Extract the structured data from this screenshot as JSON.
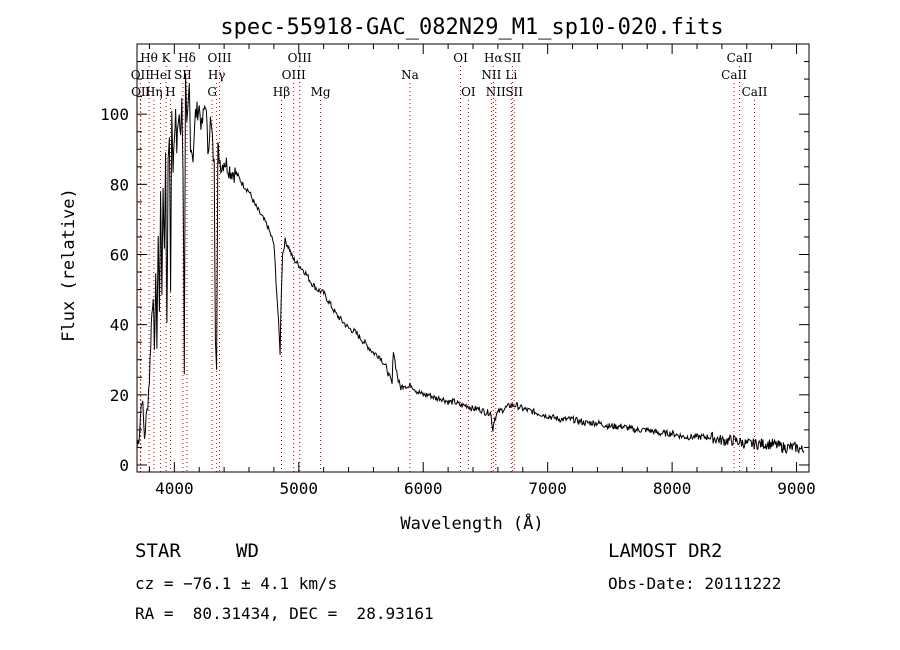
{
  "chart_data": {
    "type": "line",
    "title": "spec-55918-GAC_082N29_M1_sp10-020.fits",
    "xlabel": "Wavelength (Å)",
    "ylabel": "Flux (relative)",
    "xlim": [
      3700,
      9100
    ],
    "ylim": [
      -2,
      120
    ],
    "x_ticks": [
      4000,
      5000,
      6000,
      7000,
      8000,
      9000
    ],
    "y_ticks": [
      0,
      20,
      40,
      60,
      80,
      100
    ],
    "grid": false,
    "series": [
      {
        "x": [
          3700,
          3720,
          3740,
          3760,
          3780,
          3800,
          3815,
          3830,
          3840,
          3850,
          3860,
          3870,
          3880,
          3890,
          3900,
          3910,
          3920,
          3930,
          3940,
          3950,
          3960,
          3970,
          3980,
          3990,
          4000,
          4010,
          4020,
          4030,
          4040,
          4050,
          4060,
          4070,
          4080,
          4090,
          4100,
          4110,
          4120,
          4130,
          4150,
          4170,
          4200,
          4220,
          4250,
          4270,
          4290,
          4300,
          4320,
          4330,
          4340,
          4350,
          4360,
          4380,
          4400,
          4450,
          4500,
          4550,
          4600,
          4650,
          4700,
          4750,
          4800,
          4830,
          4850,
          4860,
          4870,
          4890,
          4920,
          4950,
          5000,
          5050,
          5100,
          5150,
          5200,
          5250,
          5300,
          5350,
          5400,
          5450,
          5500,
          5550,
          5600,
          5650,
          5700,
          5730,
          5750,
          5760,
          5780,
          5800,
          5820,
          5850,
          5880,
          5900,
          5950,
          6000,
          6050,
          6100,
          6150,
          6200,
          6250,
          6300,
          6350,
          6400,
          6450,
          6500,
          6540,
          6560,
          6570,
          6600,
          6650,
          6700,
          6750,
          6800,
          6900,
          7000,
          7100,
          7200,
          7300,
          7400,
          7500,
          7600,
          7700,
          7800,
          7900,
          8000,
          8100,
          8200,
          8300,
          8400,
          8500,
          8600,
          8700,
          8800,
          8900,
          9000,
          9060
        ],
        "y": [
          5,
          10,
          20,
          8,
          15,
          25,
          40,
          50,
          30,
          55,
          35,
          65,
          45,
          75,
          50,
          80,
          60,
          90,
          38,
          85,
          95,
          50,
          100,
          85,
          95,
          102,
          88,
          98,
          100,
          92,
          105,
          85,
          28,
          110,
          95,
          100,
          108,
          92,
          88,
          100,
          102,
          96,
          104,
          90,
          98,
          95,
          85,
          38,
          30,
          90,
          88,
          85,
          87,
          84,
          83,
          80,
          78,
          74,
          71,
          68,
          63,
          45,
          32,
          50,
          60,
          64,
          62,
          59,
          57,
          55,
          52,
          50,
          49,
          46,
          43,
          41,
          39,
          38,
          36,
          34,
          32,
          31,
          28,
          25,
          23,
          33,
          28,
          24,
          22,
          23,
          22,
          23,
          21,
          20,
          20,
          19,
          19,
          18,
          18,
          17,
          17,
          16,
          16,
          15,
          15,
          10,
          13,
          15,
          16,
          17,
          17,
          16,
          15,
          14,
          13,
          13,
          12,
          12,
          11,
          11,
          10,
          10,
          9,
          9,
          8,
          8,
          8,
          7,
          7,
          6,
          6,
          6,
          5,
          5,
          4
        ]
      }
    ],
    "line_marks": [
      {
        "label": "Hθ",
        "x": 3797,
        "row": 1
      },
      {
        "label": "OII",
        "x": 3727,
        "row": 2
      },
      {
        "label": "OII",
        "x": 3730,
        "row": 3
      },
      {
        "label": "K",
        "x": 3934,
        "row": 1
      },
      {
        "label": "HeI",
        "x": 3889,
        "row": 2
      },
      {
        "label": "Hη",
        "x": 3835,
        "row": 3
      },
      {
        "label": "SII",
        "x": 4069,
        "row": 2
      },
      {
        "label": "H",
        "x": 3969,
        "row": 3
      },
      {
        "label": "Hδ",
        "x": 4102,
        "row": 1
      },
      {
        "label": "OIII",
        "x": 4363,
        "row": 1
      },
      {
        "label": "Hγ",
        "x": 4340,
        "row": 2
      },
      {
        "label": "G",
        "x": 4304,
        "row": 3
      },
      {
        "label": "Hβ",
        "x": 4861,
        "row": 3
      },
      {
        "label": "OIII",
        "x": 5007,
        "row": 1
      },
      {
        "label": "OIII",
        "x": 4959,
        "row": 2
      },
      {
        "label": "Mg",
        "x": 5175,
        "row": 3
      },
      {
        "label": "Na",
        "x": 5893,
        "row": 2
      },
      {
        "label": "OI",
        "x": 6300,
        "row": 1
      },
      {
        "label": "OI",
        "x": 6363,
        "row": 3
      },
      {
        "label": "Hα",
        "x": 6563,
        "row": 1
      },
      {
        "label": "NII",
        "x": 6548,
        "row": 2
      },
      {
        "label": "NII",
        "x": 6583,
        "row": 3
      },
      {
        "label": "SII",
        "x": 6717,
        "row": 1
      },
      {
        "label": "Li",
        "x": 6708,
        "row": 2
      },
      {
        "label": "SII",
        "x": 6731,
        "row": 3
      },
      {
        "label": "CaII",
        "x": 8542,
        "row": 1
      },
      {
        "label": "CaII",
        "x": 8498,
        "row": 2
      },
      {
        "label": "CaII",
        "x": 8662,
        "row": 3
      }
    ]
  },
  "info": {
    "object_type": "STAR",
    "subclass": "WD",
    "survey": "LAMOST DR2",
    "cz": "cz = −76.1 ± 4.1 km/s",
    "obs_date": "Obs-Date: 20111222",
    "coords": "RA =  80.31434, DEC =  28.93161"
  }
}
